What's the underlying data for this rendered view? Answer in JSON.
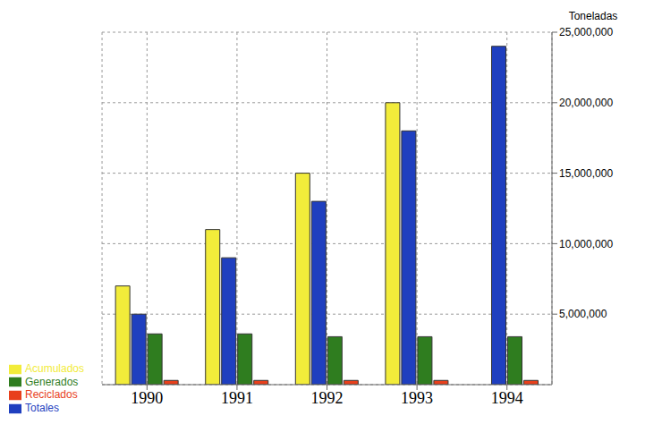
{
  "chart_data": {
    "type": "bar",
    "y_label": "Toneladas",
    "categories": [
      "1990",
      "1991",
      "1992",
      "1993",
      "1994"
    ],
    "series": [
      {
        "name": "Acumulados",
        "color": "#f2ec3a",
        "values": [
          7000000,
          11000000,
          15000000,
          20000000,
          null
        ]
      },
      {
        "name": "Totales",
        "color": "#1f3fbf",
        "values": [
          5000000,
          9000000,
          13000000,
          18000000,
          24000000
        ]
      },
      {
        "name": "Generados",
        "color": "#2f7d1f",
        "values": [
          3600000,
          3600000,
          3400000,
          3400000,
          3400000
        ]
      },
      {
        "name": "Reciclados",
        "color": "#e8401c",
        "values": [
          300000,
          300000,
          300000,
          300000,
          300000
        ]
      }
    ],
    "ylim": [
      0,
      25000000
    ],
    "yticks": [
      {
        "value": 5000000,
        "label": "5,000,000"
      },
      {
        "value": 10000000,
        "label": "10,000,000"
      },
      {
        "value": 15000000,
        "label": "15,000,000"
      },
      {
        "value": 20000000,
        "label": "20,000,000"
      },
      {
        "value": 25000000,
        "label": "25,000,000"
      }
    ],
    "grid": true,
    "legend": "bottom-left"
  }
}
